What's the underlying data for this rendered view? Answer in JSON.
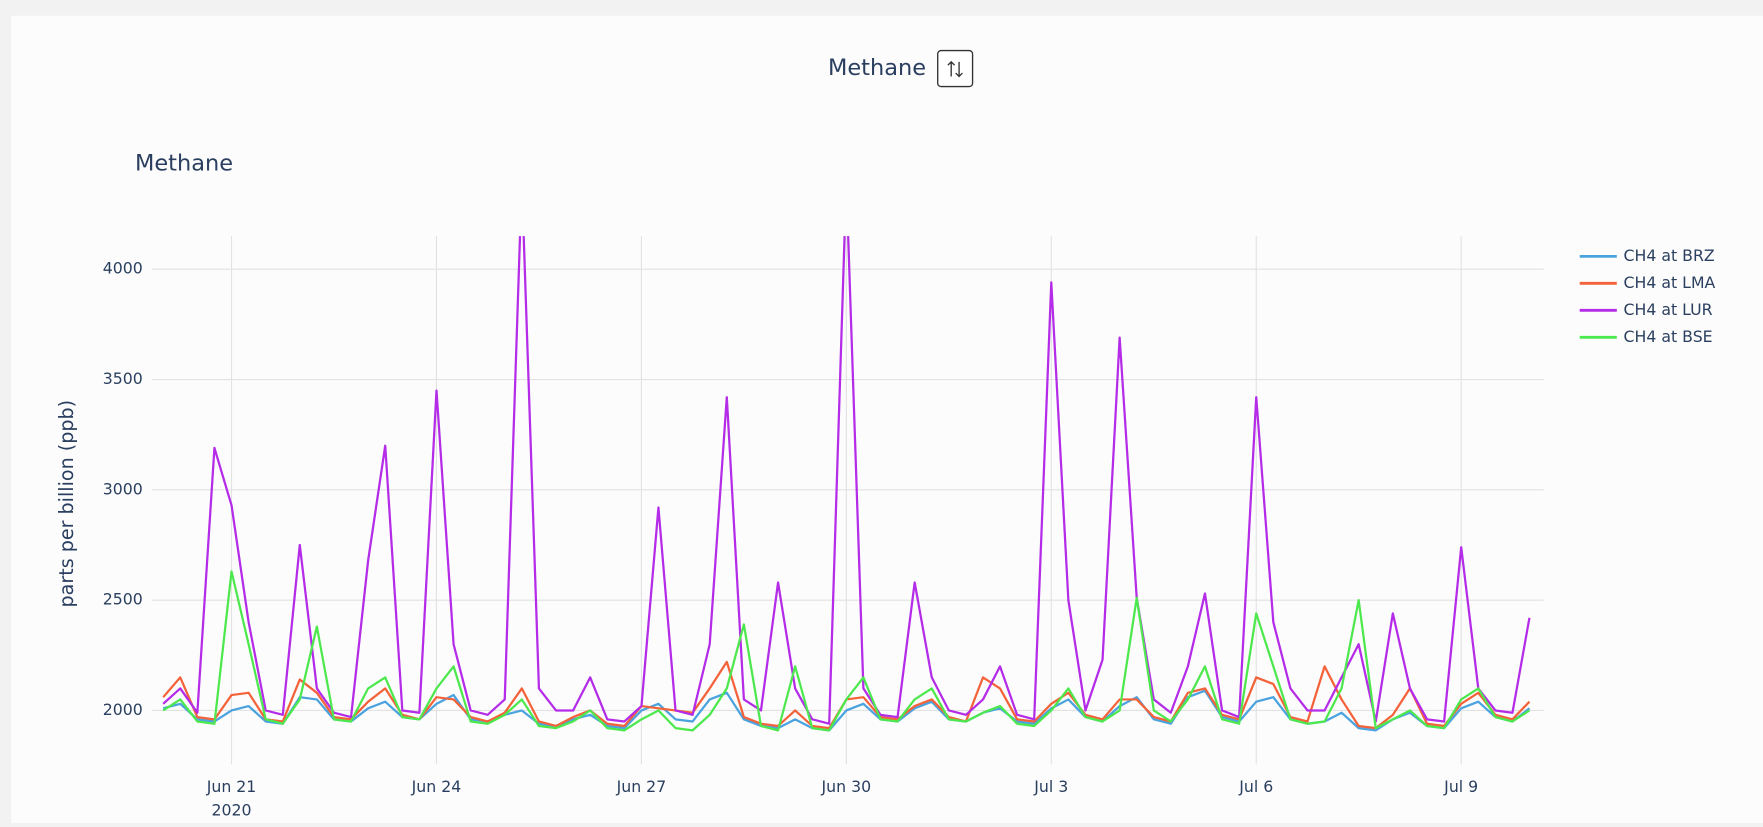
{
  "selector": {
    "label": "Methane"
  },
  "chart_data": {
    "type": "line",
    "title": "Methane",
    "y_label": "parts per billion (ppb)",
    "x": [
      "2020-06-20T00:00",
      "2020-06-20T06:00",
      "2020-06-20T12:00",
      "2020-06-20T18:00",
      "2020-06-21T00:00",
      "2020-06-21T06:00",
      "2020-06-21T12:00",
      "2020-06-21T18:00",
      "2020-06-22T00:00",
      "2020-06-22T06:00",
      "2020-06-22T12:00",
      "2020-06-22T18:00",
      "2020-06-23T00:00",
      "2020-06-23T06:00",
      "2020-06-23T12:00",
      "2020-06-23T18:00",
      "2020-06-24T00:00",
      "2020-06-24T06:00",
      "2020-06-24T12:00",
      "2020-06-24T18:00",
      "2020-06-25T00:00",
      "2020-06-25T06:00",
      "2020-06-25T12:00",
      "2020-06-25T18:00",
      "2020-06-26T00:00",
      "2020-06-26T06:00",
      "2020-06-26T12:00",
      "2020-06-26T18:00",
      "2020-06-27T00:00",
      "2020-06-27T06:00",
      "2020-06-27T12:00",
      "2020-06-27T18:00",
      "2020-06-28T00:00",
      "2020-06-28T06:00",
      "2020-06-28T12:00",
      "2020-06-28T18:00",
      "2020-06-29T00:00",
      "2020-06-29T06:00",
      "2020-06-29T12:00",
      "2020-06-29T18:00",
      "2020-06-30T00:00",
      "2020-06-30T06:00",
      "2020-06-30T12:00",
      "2020-06-30T18:00",
      "2020-07-01T00:00",
      "2020-07-01T06:00",
      "2020-07-01T12:00",
      "2020-07-01T18:00",
      "2020-07-02T00:00",
      "2020-07-02T06:00",
      "2020-07-02T12:00",
      "2020-07-02T18:00",
      "2020-07-03T00:00",
      "2020-07-03T06:00",
      "2020-07-03T12:00",
      "2020-07-03T18:00",
      "2020-07-04T00:00",
      "2020-07-04T06:00",
      "2020-07-04T12:00",
      "2020-07-04T18:00",
      "2020-07-05T00:00",
      "2020-07-05T06:00",
      "2020-07-05T12:00",
      "2020-07-05T18:00",
      "2020-07-06T00:00",
      "2020-07-06T06:00",
      "2020-07-06T12:00",
      "2020-07-06T18:00",
      "2020-07-07T00:00",
      "2020-07-07T06:00",
      "2020-07-07T12:00",
      "2020-07-07T18:00",
      "2020-07-08T00:00",
      "2020-07-08T06:00",
      "2020-07-08T12:00",
      "2020-07-08T18:00",
      "2020-07-09T00:00",
      "2020-07-09T06:00",
      "2020-07-09T12:00",
      "2020-07-09T18:00",
      "2020-07-10T00:00"
    ],
    "series": [
      {
        "name": "CH4 at BRZ",
        "color": "#4aa3df",
        "values": [
          2010,
          2030,
          1960,
          1950,
          2000,
          2020,
          1950,
          1940,
          2060,
          2050,
          1960,
          1950,
          2010,
          2040,
          1970,
          1960,
          2030,
          2070,
          1960,
          1950,
          1980,
          2000,
          1940,
          1930,
          1960,
          1980,
          1930,
          1920,
          2000,
          2030,
          1960,
          1950,
          2050,
          2080,
          1960,
          1930,
          1920,
          1960,
          1920,
          1910,
          2000,
          2030,
          1960,
          1950,
          2010,
          2040,
          1960,
          1950,
          1990,
          2010,
          1950,
          1940,
          2010,
          2050,
          1970,
          1950,
          2020,
          2060,
          1960,
          1940,
          2060,
          2090,
          1970,
          1950,
          2040,
          2060,
          1960,
          1940,
          1950,
          1990,
          1920,
          1910,
          1960,
          1990,
          1930,
          1920,
          2010,
          2040,
          1970,
          1950,
          2010
        ]
      },
      {
        "name": "CH4 at LMA",
        "color": "#f4623a",
        "values": [
          2060,
          2150,
          1970,
          1960,
          2070,
          2080,
          1960,
          1950,
          2140,
          2080,
          1970,
          1960,
          2040,
          2100,
          1980,
          1960,
          2060,
          2050,
          1970,
          1950,
          1990,
          2100,
          1950,
          1930,
          1970,
          2000,
          1940,
          1930,
          2020,
          2010,
          2000,
          1990,
          2100,
          2220,
          1970,
          1940,
          1930,
          2000,
          1930,
          1920,
          2050,
          2060,
          1970,
          1960,
          2020,
          2050,
          1970,
          1950,
          2150,
          2100,
          1960,
          1950,
          2030,
          2080,
          1980,
          1960,
          2050,
          2050,
          1970,
          1950,
          2080,
          2100,
          1980,
          1960,
          2150,
          2120,
          1970,
          1950,
          2200,
          2050,
          1930,
          1920,
          1980,
          2100,
          1940,
          1930,
          2030,
          2080,
          1980,
          1960,
          2040
        ]
      },
      {
        "name": "CH4 at LUR",
        "color": "#b42be8",
        "values": [
          2030,
          2100,
          1990,
          3190,
          2930,
          2400,
          2000,
          1980,
          2750,
          2100,
          1990,
          1970,
          2680,
          3200,
          2000,
          1990,
          3450,
          2300,
          2000,
          1980,
          2050,
          4400,
          2100,
          2000,
          2000,
          2150,
          1960,
          1950,
          2020,
          2920,
          2000,
          1980,
          2300,
          3420,
          2050,
          2000,
          2580,
          2100,
          1960,
          1940,
          4400,
          2100,
          1980,
          1970,
          2580,
          2150,
          2000,
          1980,
          2050,
          2200,
          1980,
          1960,
          3940,
          2500,
          2000,
          2230,
          3690,
          2510,
          2050,
          1990,
          2200,
          2530,
          2000,
          1970,
          3420,
          2400,
          2100,
          2000,
          2000,
          2150,
          2300,
          1950,
          2440,
          2100,
          1960,
          1950,
          2740,
          2100,
          2000,
          1990,
          2420
        ]
      },
      {
        "name": "CH4 at BSE",
        "color": "#4de84d",
        "values": [
          2000,
          2050,
          1950,
          1940,
          2630,
          2300,
          1960,
          1940,
          2050,
          2380,
          1960,
          1950,
          2100,
          2150,
          1970,
          1960,
          2100,
          2200,
          1950,
          1940,
          1980,
          2050,
          1930,
          1920,
          1950,
          2000,
          1920,
          1910,
          1960,
          2000,
          1920,
          1910,
          1980,
          2100,
          2390,
          1930,
          1910,
          2200,
          1920,
          1910,
          2050,
          2150,
          1960,
          1950,
          2050,
          2100,
          1960,
          1950,
          1990,
          2020,
          1940,
          1930,
          2000,
          2100,
          1970,
          1950,
          2000,
          2510,
          2000,
          1950,
          2050,
          2200,
          1960,
          1940,
          2440,
          2200,
          1960,
          1940,
          1950,
          2100,
          2500,
          1920,
          1960,
          2000,
          1930,
          1920,
          2050,
          2100,
          1970,
          1950,
          2000
        ]
      }
    ],
    "xlim": [
      "2020-06-19T20:00",
      "2020-07-10T05:00"
    ],
    "xticks": [
      {
        "value": "2020-06-21T00:00",
        "label": "Jun 21\n2020"
      },
      {
        "value": "2020-06-24T00:00",
        "label": "Jun 24"
      },
      {
        "value": "2020-06-27T00:00",
        "label": "Jun 27"
      },
      {
        "value": "2020-06-30T00:00",
        "label": "Jun 30"
      },
      {
        "value": "2020-07-03T00:00",
        "label": "Jul 3"
      },
      {
        "value": "2020-07-06T00:00",
        "label": "Jul 6"
      },
      {
        "value": "2020-07-09T00:00",
        "label": "Jul 9"
      }
    ],
    "ylim": [
      1755,
      4150
    ],
    "yticks": [
      2000,
      2500,
      3000,
      3500,
      4000
    ],
    "grid": true,
    "legend": "right"
  }
}
